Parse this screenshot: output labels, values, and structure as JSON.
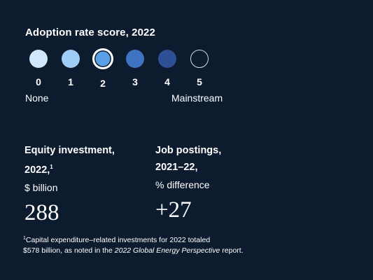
{
  "adoption": {
    "title": "Adoption rate score, 2022",
    "selected_score": 2,
    "dots": [
      {
        "label": "0",
        "color": "#cfe9fb",
        "state": "filled"
      },
      {
        "label": "1",
        "color": "#9fcdf6",
        "state": "filled"
      },
      {
        "label": "2",
        "color": "#5b9fe6",
        "state": "selected"
      },
      {
        "label": "3",
        "color": "#3d73c2",
        "state": "filled"
      },
      {
        "label": "4",
        "color": "#2c4f96",
        "state": "filled"
      },
      {
        "label": "5",
        "color": "#0d1b2e",
        "state": "empty"
      }
    ],
    "scale_low": "None",
    "scale_high": "Mainstream"
  },
  "metrics": [
    {
      "line1": "Equity investment,",
      "line2": "2022,",
      "line2_sup": "1",
      "unit": "$ billion",
      "value": "288"
    },
    {
      "line1": "Job postings,",
      "line2": "2021–22,",
      "line2_sup": "",
      "unit": "% difference",
      "value": "+27"
    }
  ],
  "footnote": {
    "marker": "1",
    "part1": "Capital expenditure–related investments for 2022 totaled",
    "part2": "$578 billion, as noted in the ",
    "italic": "2022 Global Energy Perspective",
    "part3": " report."
  }
}
